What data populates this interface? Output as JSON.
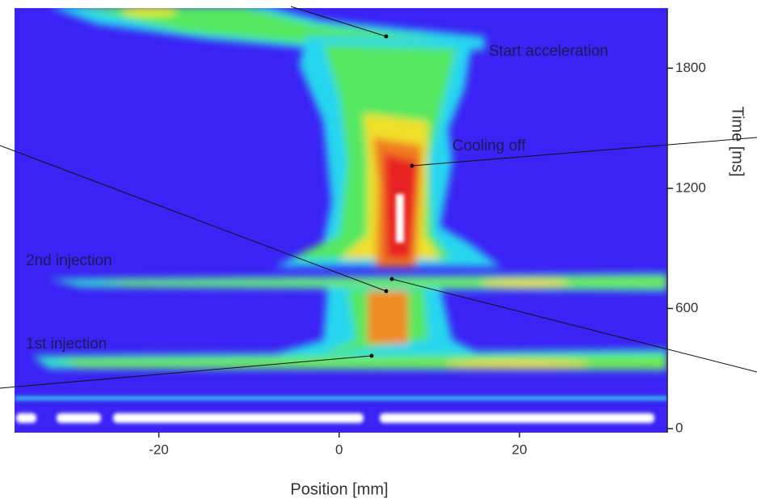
{
  "chart_data": {
    "type": "heatmap",
    "xlabel": "Position [mm]",
    "ylabel": "Time [ms]",
    "xlim": [
      -36,
      36.4
    ],
    "xticks": [
      -20,
      0,
      20
    ],
    "ylim": [
      -20,
      2100
    ],
    "yticks": [
      0,
      600,
      1200,
      1800
    ],
    "annotations": [
      "Start acceleration",
      "Cooling off",
      "2nd injection",
      "1st injection"
    ]
  }
}
